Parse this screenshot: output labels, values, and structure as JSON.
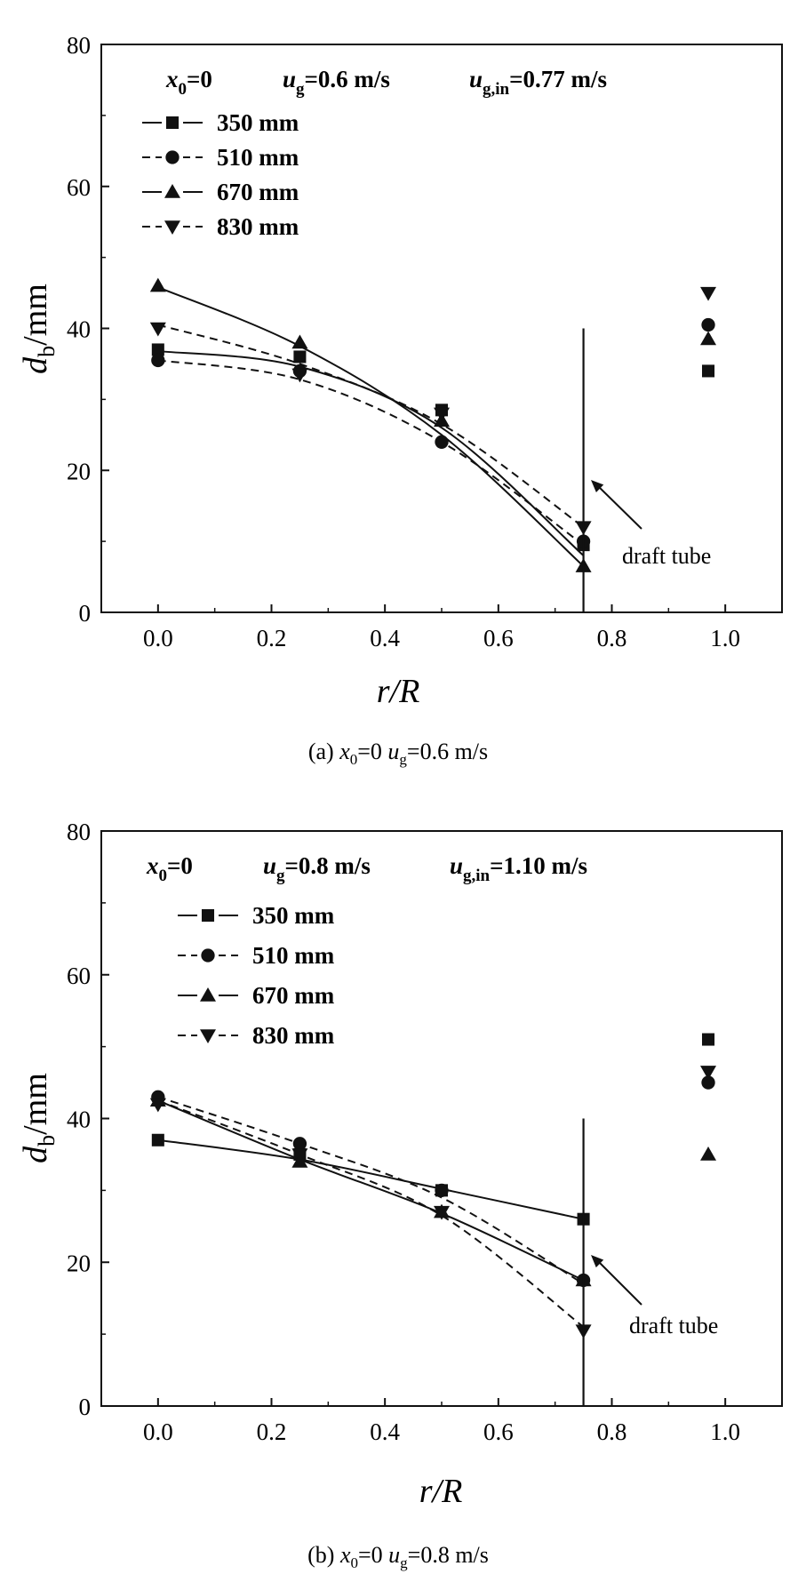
{
  "chart_data": [
    {
      "type": "line",
      "id": "a",
      "caption": {
        "label": "(a) ",
        "x0": "x",
        "x0_sub": "0",
        "x0_val": "=0 ",
        "ug": "u",
        "ug_sub": "g",
        "ug_val": "=0.6 m/s"
      },
      "header": {
        "x0": "x",
        "x0_sub": "0",
        "x0_val": "=0",
        "ug": "u",
        "ug_sub": "g",
        "ug_val": "=0.6 m/s",
        "ugin": "u",
        "ugin_sub": "g,in",
        "ugin_val": "=0.77 m/s"
      },
      "xlabel": "r/R",
      "ylabel": {
        "d": "d",
        "sub": "b",
        "unit": "/mm"
      },
      "xlim": [
        -0.1,
        1.1
      ],
      "ylim": [
        0,
        80
      ],
      "xticks": [
        0.0,
        0.2,
        0.4,
        0.6,
        0.8,
        1.0
      ],
      "xtick_labels": [
        "0.0",
        "0.2",
        "0.4",
        "0.6",
        "0.8",
        "1.0"
      ],
      "yticks": [
        0,
        20,
        40,
        60,
        80
      ],
      "ytick_labels": [
        "0",
        "20",
        "40",
        "60",
        "80"
      ],
      "draft_tube": {
        "x": 0.75,
        "y_top": 40,
        "label": "draft tube"
      },
      "series": [
        {
          "name": "350 mm",
          "marker": "square",
          "dash": "solid",
          "x": [
            0,
            0.25,
            0.5,
            0.75
          ],
          "y": [
            37,
            36,
            28.5,
            9.5
          ],
          "fit": [
            [
              0,
              36.8
            ],
            [
              0.25,
              34.6
            ],
            [
              0.5,
              26
            ],
            [
              0.75,
              8
            ]
          ],
          "wall": {
            "x": 0.97,
            "y": 34
          }
        },
        {
          "name": "510 mm",
          "marker": "circle",
          "dash": "dash",
          "x": [
            0,
            0.25,
            0.5,
            0.75
          ],
          "y": [
            35.5,
            34,
            24,
            10
          ],
          "fit": [
            [
              0,
              35.5
            ],
            [
              0.25,
              32.8
            ],
            [
              0.5,
              24
            ],
            [
              0.75,
              9.5
            ]
          ],
          "wall": {
            "x": 0.97,
            "y": 40.5
          }
        },
        {
          "name": "670 mm",
          "marker": "triangle-up",
          "dash": "solid",
          "x": [
            0,
            0.25,
            0.5,
            0.75
          ],
          "y": [
            46,
            38,
            27,
            6.5
          ],
          "fit": [
            [
              0,
              45.8
            ],
            [
              0.25,
              37.5
            ],
            [
              0.5,
              25
            ],
            [
              0.75,
              6.5
            ]
          ],
          "wall": {
            "x": 0.97,
            "y": 38.5
          }
        },
        {
          "name": "830 mm",
          "marker": "triangle-down",
          "dash": "dash",
          "x": [
            0,
            0.25,
            0.5,
            0.75
          ],
          "y": [
            40,
            33.5,
            28,
            12
          ],
          "fit": [
            [
              0,
              40.5
            ],
            [
              0.25,
              35
            ],
            [
              0.5,
              26.5
            ],
            [
              0.75,
              12
            ]
          ],
          "wall": {
            "x": 0.97,
            "y": 45
          }
        }
      ]
    },
    {
      "type": "line",
      "id": "b",
      "caption": {
        "label": "(b) ",
        "x0": "x",
        "x0_sub": "0",
        "x0_val": "=0 ",
        "ug": "u",
        "ug_sub": "g",
        "ug_val": "=0.8 m/s"
      },
      "header": {
        "x0": "x",
        "x0_sub": "0",
        "x0_val": "=0",
        "ug": "u",
        "ug_sub": "g",
        "ug_val": "=0.8 m/s",
        "ugin": "u",
        "ugin_sub": "g,in",
        "ugin_val": "=1.10 m/s"
      },
      "xlabel": "r/R",
      "ylabel": {
        "d": "d",
        "sub": "b",
        "unit": "/mm"
      },
      "xlim": [
        -0.1,
        1.1
      ],
      "ylim": [
        0,
        80
      ],
      "xticks": [
        0.0,
        0.2,
        0.4,
        0.6,
        0.8,
        1.0
      ],
      "xtick_labels": [
        "0.0",
        "0.2",
        "0.4",
        "0.6",
        "0.8",
        "1.0"
      ],
      "yticks": [
        0,
        20,
        40,
        60,
        80
      ],
      "ytick_labels": [
        "0",
        "20",
        "40",
        "60",
        "80"
      ],
      "draft_tube": {
        "x": 0.75,
        "y_top": 40,
        "label": "draft tube"
      },
      "series": [
        {
          "name": "350 mm",
          "marker": "square",
          "dash": "solid",
          "x": [
            0,
            0.25,
            0.5,
            0.75
          ],
          "y": [
            37,
            35,
            30,
            26
          ],
          "fit": [
            [
              0,
              37
            ],
            [
              0.25,
              34.3
            ],
            [
              0.5,
              30.2
            ],
            [
              0.75,
              26
            ]
          ],
          "wall": {
            "x": 0.97,
            "y": 51
          }
        },
        {
          "name": "510 mm",
          "marker": "circle",
          "dash": "dash",
          "x": [
            0,
            0.25,
            0.5,
            0.75
          ],
          "y": [
            43,
            36.5,
            30,
            17.5
          ],
          "fit": [
            [
              0,
              43
            ],
            [
              0.25,
              36.5
            ],
            [
              0.5,
              29
            ],
            [
              0.75,
              17
            ]
          ],
          "wall": {
            "x": 0.97,
            "y": 45
          }
        },
        {
          "name": "670 mm",
          "marker": "triangle-up",
          "dash": "solid",
          "x": [
            0,
            0.25,
            0.5,
            0.75
          ],
          "y": [
            42.5,
            34,
            27,
            17.5
          ],
          "fit": [
            [
              0,
              42.5
            ],
            [
              0.25,
              34.3
            ],
            [
              0.5,
              26.8
            ],
            [
              0.75,
              17.5
            ]
          ],
          "wall": {
            "x": 0.97,
            "y": 35
          }
        },
        {
          "name": "830 mm",
          "marker": "triangle-down",
          "dash": "dash",
          "x": [
            0,
            0.25,
            0.5,
            0.75
          ],
          "y": [
            42,
            35,
            27,
            10.5
          ],
          "fit": [
            [
              0,
              42.5
            ],
            [
              0.25,
              35
            ],
            [
              0.5,
              26.5
            ],
            [
              0.75,
              11
            ]
          ],
          "wall": {
            "x": 0.97,
            "y": 46.5
          }
        }
      ]
    }
  ]
}
